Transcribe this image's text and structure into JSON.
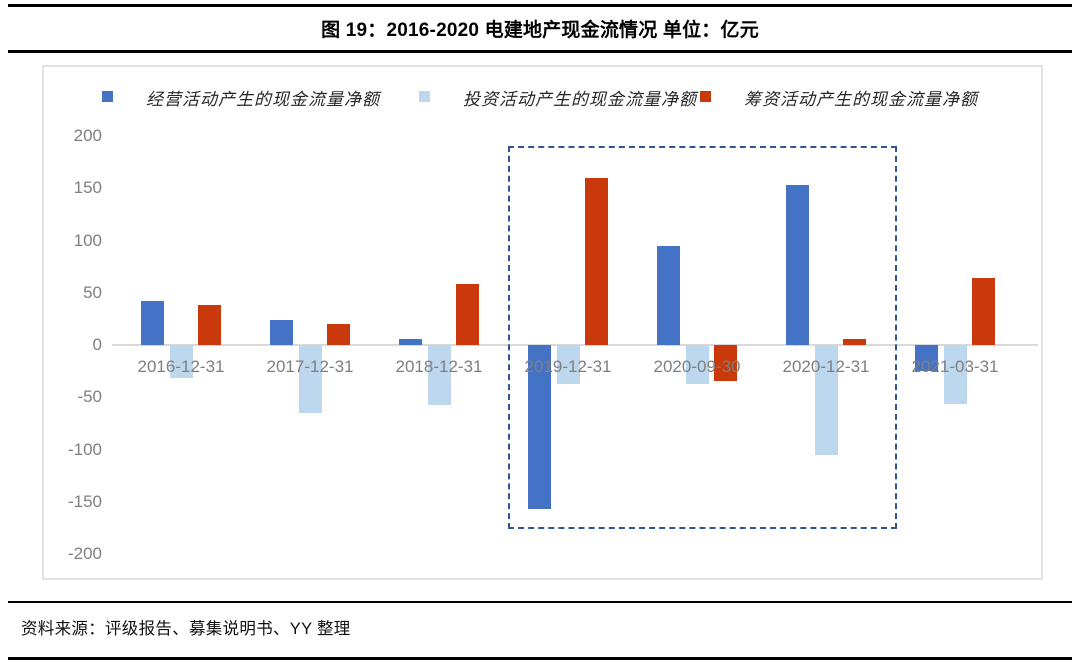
{
  "title": "图 19：2016-2020 电建地产现金流情况 单位：亿元",
  "source_note": "资料来源：评级报告、募集说明书、YY 整理",
  "colors": {
    "operating": "#4472C4",
    "investing": "#BDD7EE",
    "financing": "#C9390B",
    "axis_text": "#7F7F7F",
    "zero_line": "#D9D9D9",
    "highlight_border": "#2F5597"
  },
  "chart_data": {
    "type": "bar",
    "title": "图 19：2016-2020 电建地产现金流情况 单位：亿元",
    "unit": "亿元",
    "categories": [
      "2016-12-31",
      "2017-12-31",
      "2018-12-31",
      "2019-12-31",
      "2020-09-30",
      "2020-12-31",
      "2021-03-31"
    ],
    "series": [
      {
        "name": "经营活动产生的现金流量净额",
        "key": "operating",
        "color": "#4472C4",
        "values": [
          42,
          24,
          6,
          -157,
          95,
          153,
          -25
        ]
      },
      {
        "name": "投资活动产生的现金流量净额",
        "key": "investing",
        "color": "#BDD7EE",
        "values": [
          -32,
          -65,
          -57,
          -37,
          -37,
          -105,
          -56
        ]
      },
      {
        "name": "筹资活动产生的现金流量净额",
        "key": "financing",
        "color": "#C9390B",
        "values": [
          38,
          20,
          58,
          160,
          -34,
          6,
          64
        ]
      }
    ],
    "ylim": [
      -200,
      200
    ],
    "yticks": [
      200,
      150,
      100,
      50,
      0,
      -50,
      -100,
      -150,
      -200
    ],
    "grid": false,
    "legend_position": "top",
    "highlight_box_categories": [
      "2019-12-31",
      "2020-09-30",
      "2020-12-31"
    ]
  }
}
